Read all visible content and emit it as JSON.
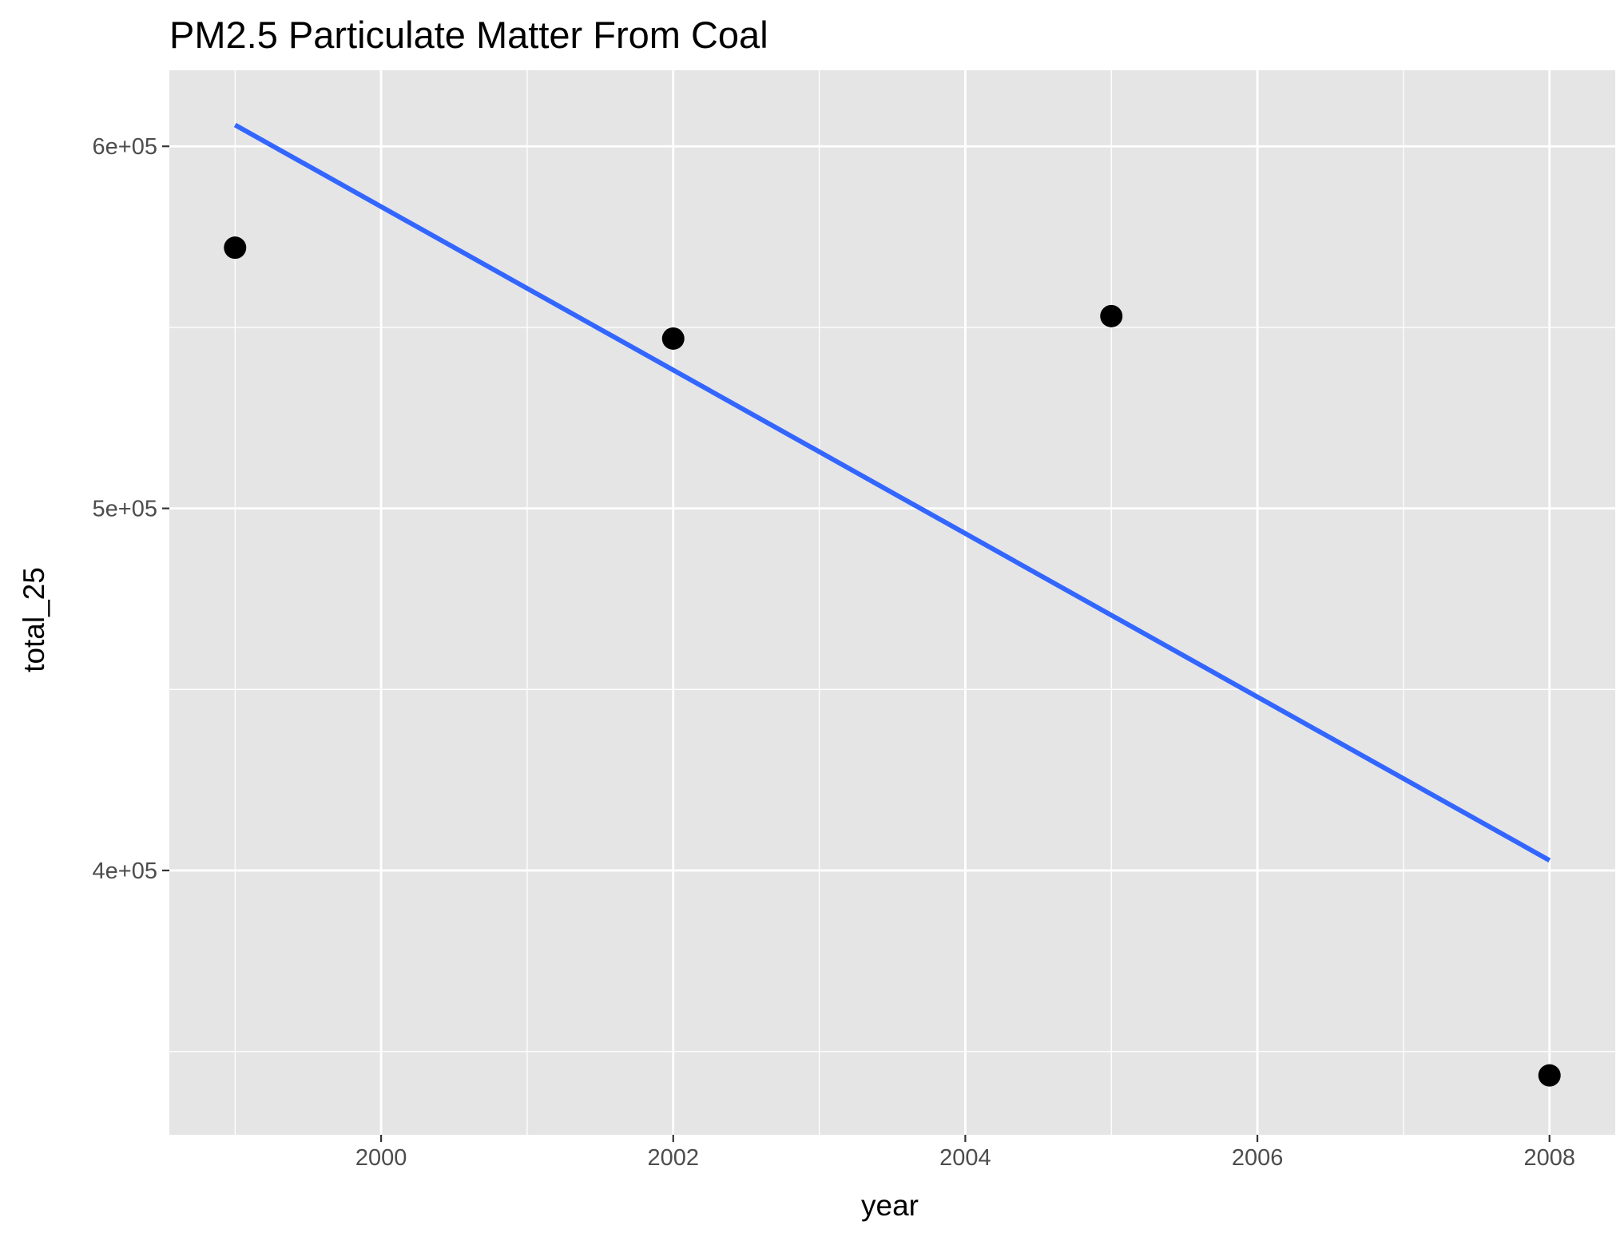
{
  "chart_data": {
    "type": "scatter",
    "title": "PM2.5 Particulate Matter From Coal",
    "xlabel": "year",
    "ylabel": "total_25",
    "xlim": [
      1998.55,
      2008.45
    ],
    "ylim": [
      327000,
      621000
    ],
    "x_ticks": [
      2000,
      2002,
      2004,
      2006,
      2008
    ],
    "x_tick_labels": [
      "2000",
      "2002",
      "2004",
      "2006",
      "2008"
    ],
    "y_ticks": [
      400000,
      500000,
      600000
    ],
    "y_tick_labels": [
      "4e+05",
      "5e+05",
      "6e+05"
    ],
    "grid": true,
    "legend": "none",
    "points": [
      {
        "x": 1999,
        "y": 572000
      },
      {
        "x": 2002,
        "y": 546900
      },
      {
        "x": 2005,
        "y": 553100
      },
      {
        "x": 2008,
        "y": 343400
      }
    ],
    "fit_line": {
      "method": "linear",
      "from": {
        "x": 1999,
        "y": 605900
      },
      "to": {
        "x": 2008,
        "y": 402800
      }
    },
    "colors": {
      "panel": "#e5e5e5",
      "grid": "#ffffff",
      "points": "#000000",
      "fit_line": "#3366ff"
    }
  }
}
